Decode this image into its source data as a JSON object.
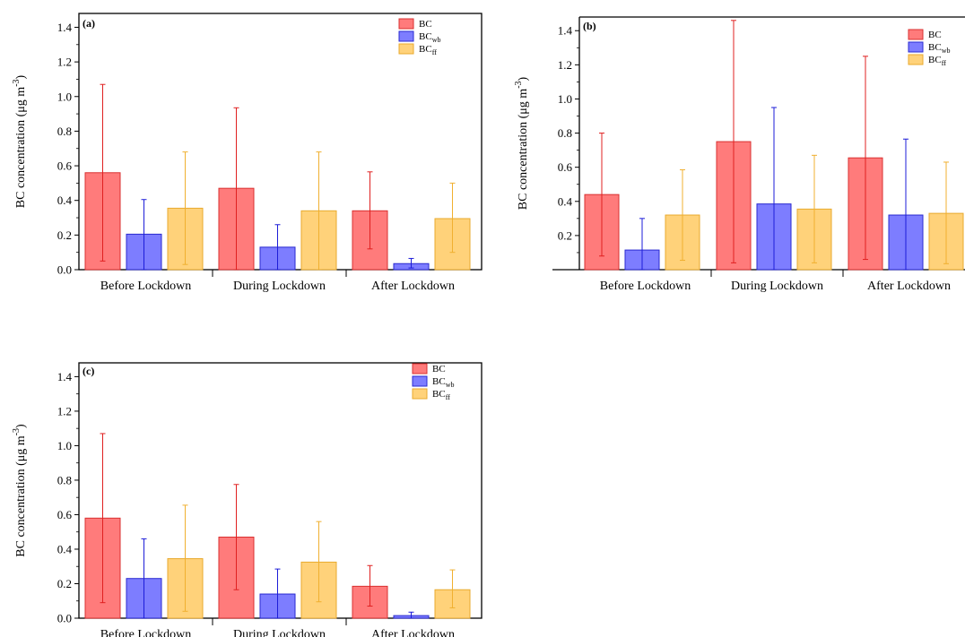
{
  "chart_data": [
    {
      "type": "bar",
      "panel_label": "(a)",
      "ylabel": "BC concentration (μg m",
      "ylabel_sup": "-3",
      "ylabel_close": ")",
      "ylim": [
        0,
        1.48
      ],
      "yticks": [
        "0.0",
        "0.2",
        "0.4",
        "0.6",
        "0.8",
        "1.0",
        "1.2",
        "1.4"
      ],
      "ytick_values": [
        0.0,
        0.2,
        0.4,
        0.6,
        0.8,
        1.0,
        1.2,
        1.4
      ],
      "categories": [
        "Before Lockdown",
        "During Lockdown",
        "After Lockdown"
      ],
      "legend_position": "top-right",
      "series": [
        {
          "name": "BC",
          "name_sub": "",
          "values": [
            0.56,
            0.47,
            0.34
          ],
          "err_low": [
            0.05,
            0.0,
            0.12
          ],
          "err_high": [
            1.07,
            0.935,
            0.565
          ]
        },
        {
          "name": "BC",
          "name_sub": "wb",
          "values": [
            0.205,
            0.13,
            0.035
          ],
          "err_low": [
            0.0,
            0.0,
            0.01
          ],
          "err_high": [
            0.405,
            0.26,
            0.065
          ]
        },
        {
          "name": "BC",
          "name_sub": "ff",
          "values": [
            0.355,
            0.34,
            0.295
          ],
          "err_low": [
            0.03,
            0.0,
            0.1
          ],
          "err_high": [
            0.68,
            0.68,
            0.5
          ]
        }
      ]
    },
    {
      "type": "bar",
      "panel_label": "(b)",
      "ylabel": "BC concentration (μg m",
      "ylabel_sup": "-3",
      "ylabel_close": ")",
      "ylim": [
        0,
        1.48
      ],
      "yticks": [
        "0.2",
        "0.4",
        "0.6",
        "0.8",
        "1.0",
        "1.2",
        "1.4"
      ],
      "ytick_values": [
        0.2,
        0.4,
        0.6,
        0.8,
        1.0,
        1.2,
        1.4
      ],
      "categories": [
        "Before Lockdown",
        "During Lockdown",
        "After Lockdown"
      ],
      "legend_position": "top-right",
      "series": [
        {
          "name": "BC",
          "name_sub": "",
          "values": [
            0.44,
            0.75,
            0.655
          ],
          "err_low": [
            0.08,
            0.04,
            0.06
          ],
          "err_high": [
            0.8,
            1.46,
            1.25
          ]
        },
        {
          "name": "BC",
          "name_sub": "wb",
          "values": [
            0.115,
            0.385,
            0.32
          ],
          "err_low": [
            0.0,
            0.0,
            0.0
          ],
          "err_high": [
            0.3,
            0.95,
            0.765
          ]
        },
        {
          "name": "BC",
          "name_sub": "ff",
          "values": [
            0.32,
            0.355,
            0.33
          ],
          "err_low": [
            0.055,
            0.04,
            0.035
          ],
          "err_high": [
            0.585,
            0.67,
            0.63
          ]
        }
      ]
    },
    {
      "type": "bar",
      "panel_label": "(c)",
      "ylabel": "BC concentration (μg m",
      "ylabel_sup": "-3",
      "ylabel_close": ")",
      "ylim": [
        0,
        1.48
      ],
      "yticks": [
        "0.0",
        "0.2",
        "0.4",
        "0.6",
        "0.8",
        "1.0",
        "1.2",
        "1.4"
      ],
      "ytick_values": [
        0.0,
        0.2,
        0.4,
        0.6,
        0.8,
        1.0,
        1.2,
        1.4
      ],
      "categories": [
        "Before Lockdown",
        "During Lockdown",
        "After Lockdown"
      ],
      "legend_position": "top-right",
      "series": [
        {
          "name": "BC",
          "name_sub": "",
          "values": [
            0.58,
            0.47,
            0.185
          ],
          "err_low": [
            0.09,
            0.165,
            0.07
          ],
          "err_high": [
            1.07,
            0.775,
            0.305
          ]
        },
        {
          "name": "BC",
          "name_sub": "wb",
          "values": [
            0.23,
            0.14,
            0.015
          ],
          "err_low": [
            0.0,
            0.0,
            0.0
          ],
          "err_high": [
            0.46,
            0.285,
            0.035
          ]
        },
        {
          "name": "BC",
          "name_sub": "ff",
          "values": [
            0.345,
            0.325,
            0.165
          ],
          "err_low": [
            0.04,
            0.095,
            0.06
          ],
          "err_high": [
            0.655,
            0.56,
            0.28
          ]
        }
      ]
    }
  ],
  "colors": {
    "series_fill": [
      "#ff7b7b",
      "#7d7dff",
      "#ffd27a"
    ],
    "series_stroke": [
      "#d93030",
      "#2a2ad0",
      "#e8aa2e"
    ],
    "error_bar": [
      "#e02020",
      "#1d1dd8",
      "#f0b030"
    ]
  }
}
